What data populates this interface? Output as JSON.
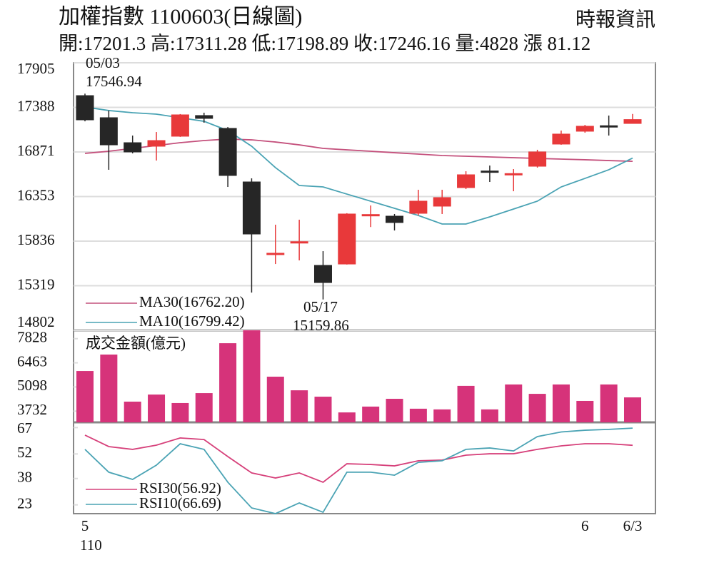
{
  "header": {
    "title": "加權指數 1100603(日線圖)",
    "source": "時報資訊",
    "quote": "開:17201.3 高:17311.28 低:17198.89 收:17246.16 量:4828 漲 81.12"
  },
  "chart_data": [
    {
      "type": "candlestick",
      "categories": [
        "5",
        null,
        null,
        null,
        null,
        null,
        null,
        null,
        null,
        null,
        null,
        null,
        null,
        null,
        null,
        null,
        null,
        null,
        null,
        null,
        null,
        "6",
        null,
        "6/3"
      ],
      "x_year_label": "110",
      "open": [
        17524,
        17268,
        16978,
        16937,
        17053,
        17293,
        17144,
        16523,
        15680,
        15815,
        15555,
        15571,
        16130,
        16126,
        16159,
        16242,
        16457,
        16650,
        16610,
        16705,
        16962,
        17111,
        17175,
        17201.3
      ],
      "high": [
        17546.94,
        17351,
        17061,
        17102,
        17310,
        17326,
        17160,
        16564,
        16027,
        16085,
        15720,
        16160,
        16250,
        16151,
        16432,
        16432,
        16647,
        16713,
        16672,
        16896,
        17119,
        17185,
        17293,
        17311.28
      ],
      "low": [
        17226,
        16664,
        16854,
        16771,
        17045,
        17210,
        16465,
        15240,
        15571,
        15613,
        15159.86,
        15565,
        16000,
        15960,
        16134,
        16151,
        16440,
        16523,
        16415,
        16689,
        16954,
        17094,
        17061,
        17198.89
      ],
      "close": [
        17243,
        16953,
        16871,
        17003,
        17301,
        17260,
        16598,
        15919,
        15696,
        15830,
        15356,
        16151,
        16145,
        16052,
        16300,
        16341,
        16606,
        16640,
        16620,
        16871,
        17078,
        17169,
        17165,
        17246.16
      ],
      "up_color": "#e8393a",
      "down_color": "#262626",
      "series": [
        {
          "name": "MA30(16762.20)",
          "color": "#c4507c",
          "values": [
            16854,
            16879,
            16912,
            16945,
            16978,
            17003,
            17020,
            17011,
            16986,
            16953,
            16912,
            16895,
            16879,
            16862,
            16846,
            16829,
            16821,
            16813,
            16804,
            16796,
            16788,
            16780,
            16771,
            16762.2
          ]
        },
        {
          "name": "MA10(16799.42)",
          "color": "#4aa3b4",
          "values": [
            17392,
            17351,
            17326,
            17309,
            17268,
            17226,
            17119,
            16937,
            16689,
            16482,
            16465,
            16382,
            16300,
            16217,
            16134,
            16035,
            16035,
            16118,
            16209,
            16300,
            16465,
            16564,
            16664,
            16799.42
          ]
        }
      ],
      "annotations": [
        {
          "text": "05/03"
        },
        {
          "text": "17546.94"
        },
        {
          "text": "05/17"
        },
        {
          "text": "15159.86"
        }
      ],
      "ylim": [
        14802,
        17905
      ],
      "yticks": [
        17905,
        17388,
        16871,
        16353,
        15836,
        15319,
        14802
      ],
      "grid": true
    },
    {
      "type": "bar",
      "title": "成交金額(億元)",
      "color": "#d6337a",
      "values": [
        6000,
        6930,
        4270,
        4670,
        4190,
        4750,
        7570,
        8300,
        5680,
        4910,
        4550,
        3660,
        3990,
        4430,
        3870,
        3830,
        5160,
        3830,
        5240,
        4710,
        5240,
        4310,
        5240,
        4510
      ],
      "ylim": [
        3100,
        8300
      ],
      "yticks": [
        7828,
        6463,
        5098,
        3732
      ]
    },
    {
      "type": "line",
      "series": [
        {
          "name": "RSI30(56.92)",
          "color": "#d6407a",
          "values": [
            62.7,
            56.2,
            54.6,
            57.0,
            61.1,
            60.2,
            50.5,
            41.2,
            38.3,
            41.2,
            35.9,
            46.4,
            46.0,
            45.2,
            48.1,
            48.5,
            51.3,
            52.1,
            52.1,
            54.6,
            56.6,
            57.8,
            57.8,
            56.92
          ]
        },
        {
          "name": "RSI10(66.69)",
          "color": "#4aa3b4",
          "values": [
            54.6,
            41.6,
            37.5,
            45.6,
            57.8,
            54.6,
            35.9,
            21.25,
            18.0,
            24.1,
            18.8,
            41.6,
            41.6,
            39.9,
            47.2,
            48.1,
            54.6,
            55.4,
            53.7,
            61.9,
            64.5,
            65.5,
            66.0,
            66.69
          ]
        }
      ],
      "ylim": [
        18,
        70
      ],
      "yticks": [
        67,
        52,
        38,
        23
      ]
    }
  ]
}
